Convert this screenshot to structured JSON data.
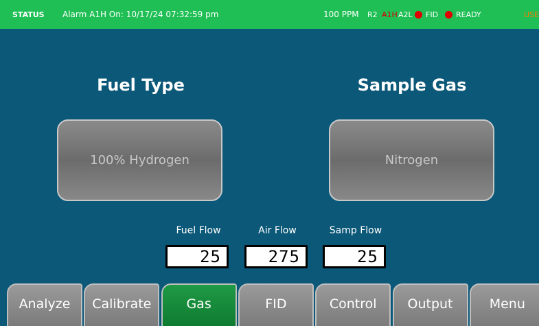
{
  "status_bar": {
    "label": "STATUS",
    "message": "Alarm A1H On: 10/17/24 07:32:59 pm",
    "reading": "100 PPM",
    "indicators": [
      "R2",
      "A1H",
      "A2L"
    ],
    "fid": "FID",
    "ready": "READY",
    "user": "USE"
  },
  "fuel": {
    "title": "Fuel Type",
    "button": "100% Hydrogen"
  },
  "sample": {
    "title": "Sample Gas",
    "button": "Nitrogen"
  },
  "flows": [
    {
      "label": "Fuel Flow",
      "value": 25
    },
    {
      "label": "Air Flow",
      "value": 275
    },
    {
      "label": "Samp Flow",
      "value": 25
    }
  ],
  "tabs": [
    "Analyze",
    "Calibrate",
    "Gas",
    "FID",
    "Control",
    "Output",
    "Menu"
  ],
  "active_tab": 2
}
